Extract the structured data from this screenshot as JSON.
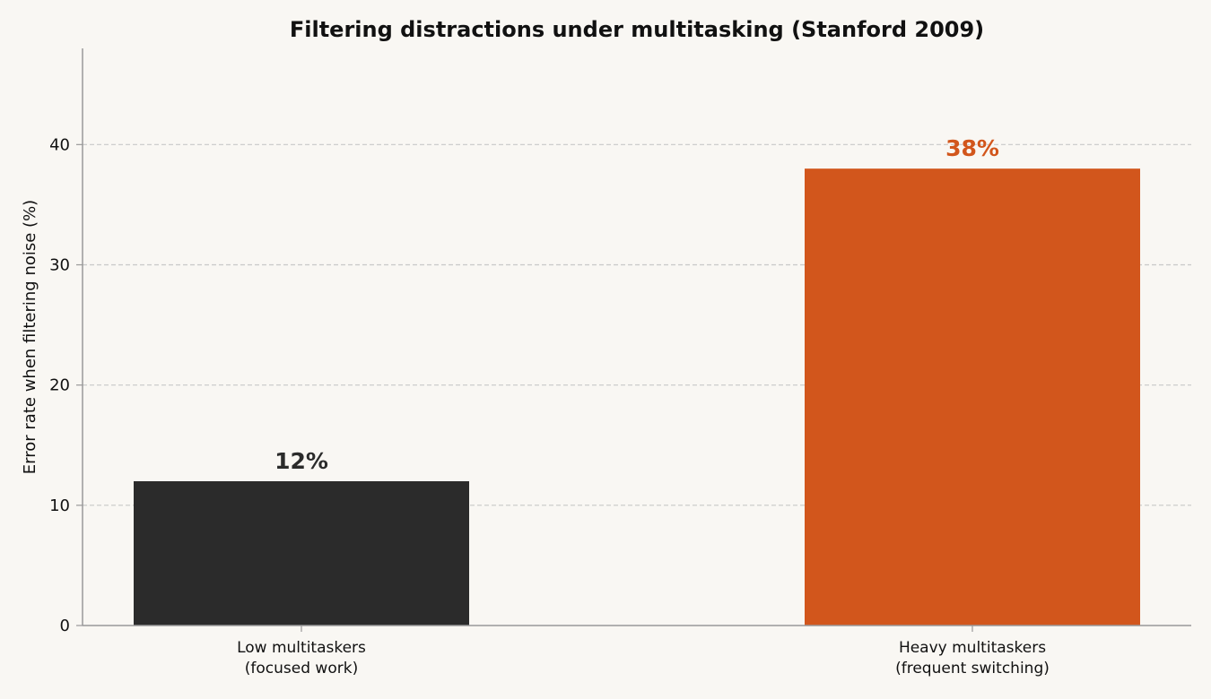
{
  "chart_data": {
    "type": "bar",
    "title": "Filtering distractions under multitasking (Stanford 2009)",
    "xlabel": "",
    "ylabel": "Error rate when filtering noise (%)",
    "ylim": [
      0,
      48
    ],
    "yticks": [
      0,
      10,
      20,
      30,
      40
    ],
    "grid": true,
    "categories": [
      {
        "line1": "Low multitaskers",
        "line2": "(focused work)"
      },
      {
        "line1": "Heavy multitaskers",
        "line2": "(frequent switching)"
      }
    ],
    "values": [
      12,
      38
    ],
    "value_labels": [
      "12%",
      "38%"
    ],
    "bar_colors": [
      "#2b2b2b",
      "#d2561c"
    ],
    "label_colors": [
      "#2b2b2b",
      "#d2561c"
    ]
  },
  "colors": {
    "background": "#f9f7f3",
    "grid": "#c8c8c8",
    "axis": "#999999"
  }
}
